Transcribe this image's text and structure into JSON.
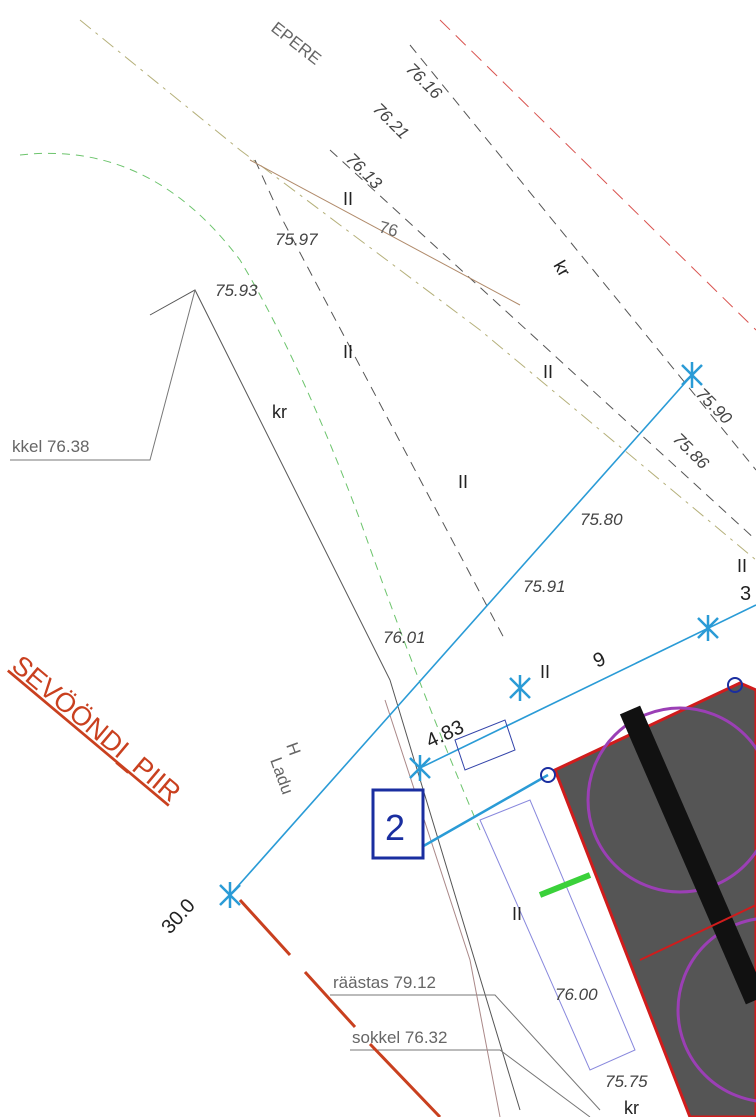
{
  "street_name": "EPERE",
  "elevations": [
    "76.16",
    "76.21",
    "76.13",
    "75.97",
    "75.93",
    "75.90",
    "75.86",
    "75.80",
    "75.91",
    "76.01",
    "76.00",
    "75.75"
  ],
  "contour_label": "76",
  "surface_codes": [
    "II",
    "II",
    "II",
    "II",
    "II",
    "II",
    "II"
  ],
  "material_codes": [
    "kr",
    "kr",
    "kr"
  ],
  "annotations": {
    "plinth_left": "kkel 76.38",
    "eaves": "räästas 79.12",
    "plinth": "sokkel 76.32"
  },
  "dimensions": [
    "4.83",
    "9",
    "30.0",
    "3"
  ],
  "boundary_label": "SEVÖÖNDI_PIIR",
  "building_label": {
    "letter": "H",
    "name": "Ladu"
  },
  "building_number": "2"
}
